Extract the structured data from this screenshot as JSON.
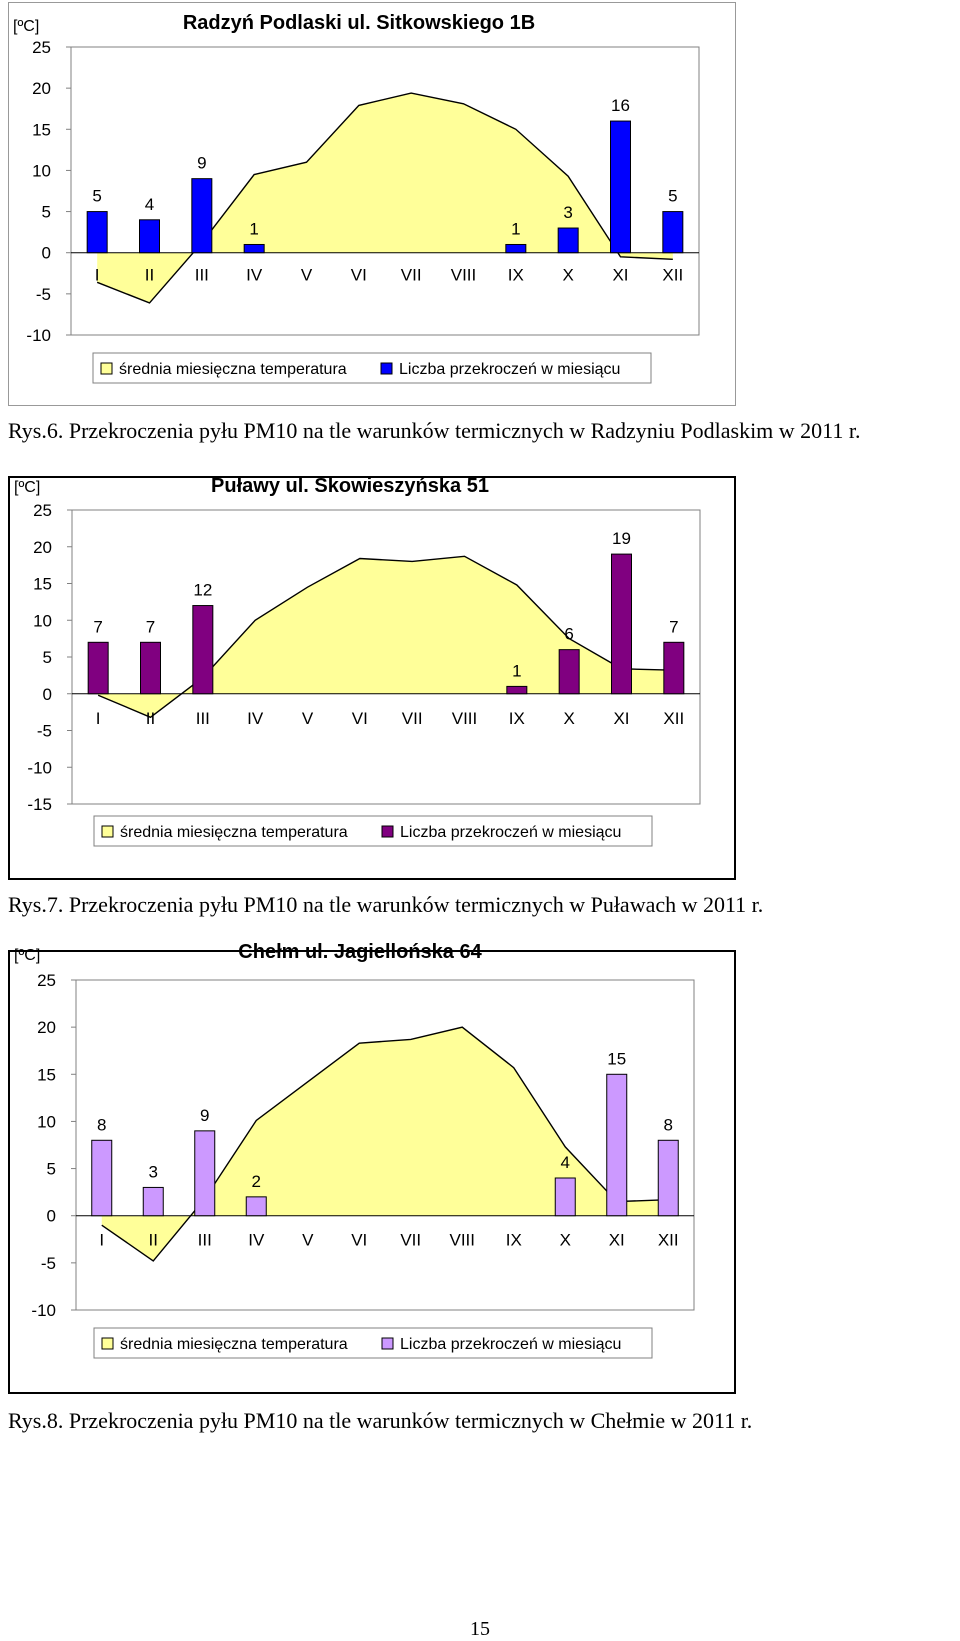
{
  "colors": {
    "temperature_fill": "#ffff99",
    "temperature_stroke": "#000000",
    "plot_border": "#808080"
  },
  "chart_data": [
    {
      "type": "bar",
      "title": "Radzyń Podlaski ul. Sitkowskiego 1B",
      "ylabel": "[ºC]",
      "ylim": [
        -10,
        25
      ],
      "yticks": [
        25,
        20,
        15,
        10,
        5,
        0,
        -5,
        -10
      ],
      "categories": [
        "I",
        "II",
        "III",
        "IV",
        "V",
        "VI",
        "VII",
        "VIII",
        "IX",
        "X",
        "XI",
        "XII"
      ],
      "grid": false,
      "legend_position": "bottom",
      "bar_color": "#0000ff",
      "series": [
        {
          "name": "średnia miesięczna temperatura",
          "type": "area",
          "values": [
            -3.6,
            -6.1,
            1.2,
            9.5,
            11,
            17.9,
            19.4,
            18.1,
            15,
            9.3,
            -0.5,
            -0.8
          ]
        },
        {
          "name": "Liczba przekroczeń w miesiącu",
          "type": "bar",
          "values": [
            5,
            4,
            9,
            1,
            null,
            null,
            null,
            null,
            1,
            3,
            16,
            5
          ],
          "labels": [
            "5",
            "4",
            "9",
            "1",
            "",
            "",
            "",
            "",
            "1",
            "3",
            "16",
            "5"
          ]
        }
      ]
    },
    {
      "type": "bar",
      "title": "Puławy ul. Skowieszyńska 51",
      "ylabel": "[ºC]",
      "ylim": [
        -15,
        25
      ],
      "yticks": [
        25,
        20,
        15,
        10,
        5,
        0,
        -5,
        -10,
        -15
      ],
      "categories": [
        "I",
        "II",
        "III",
        "IV",
        "V",
        "VI",
        "VII",
        "VIII",
        "IX",
        "X",
        "XI",
        "XII"
      ],
      "grid": false,
      "legend_position": "bottom",
      "bar_color": "#800080",
      "series": [
        {
          "name": "średnia miesięczna temperatura",
          "type": "area",
          "values": [
            -0.2,
            -3.2,
            2.2,
            10,
            14.5,
            18.4,
            18,
            18.7,
            14.8,
            7.5,
            3.4,
            3.2
          ]
        },
        {
          "name": "Liczba przekroczeń w miesiącu",
          "type": "bar",
          "values": [
            7,
            7,
            12,
            null,
            null,
            null,
            null,
            null,
            1,
            6,
            19,
            7
          ],
          "labels": [
            "7",
            "7",
            "12",
            "",
            "",
            "",
            "",
            "",
            "1",
            "6",
            "19",
            "7"
          ]
        }
      ]
    },
    {
      "type": "bar",
      "title": "Chełm ul. Jagiellońska 64",
      "ylabel": "[ºC]",
      "ylim": [
        -10,
        25
      ],
      "yticks": [
        25,
        20,
        15,
        10,
        5,
        0,
        -5,
        -10
      ],
      "categories": [
        "I",
        "II",
        "III",
        "IV",
        "V",
        "VI",
        "VII",
        "VIII",
        "IX",
        "X",
        "XI",
        "XII"
      ],
      "grid": false,
      "legend_position": "bottom",
      "bar_color": "#cc99ff",
      "series": [
        {
          "name": "średnia miesięczna temperatura",
          "type": "area",
          "values": [
            -1,
            -4.8,
            1.8,
            10.1,
            14.2,
            18.3,
            18.7,
            20,
            15.7,
            7.3,
            1.5,
            1.7
          ]
        },
        {
          "name": "Liczba przekroczeń w miesiącu",
          "type": "bar",
          "values": [
            8,
            3,
            9,
            2,
            null,
            null,
            null,
            null,
            null,
            4,
            15,
            8
          ],
          "labels": [
            "8",
            "3",
            "9",
            "2",
            "",
            "",
            "",
            "",
            "",
            "4",
            "15",
            "8"
          ]
        }
      ]
    }
  ],
  "captions": [
    "Rys.6. Przekroczenia pyłu PM10 na tle warunków termicznych w Radzyniu Podlaskim w 2011 r.",
    "Rys.7. Przekroczenia pyłu PM10 na tle warunków termicznych w Puławach w 2011 r.",
    "Rys.8. Przekroczenia pyłu PM10 na tle warunków termicznych w Chełmie w 2011 r."
  ],
  "page_number": "15"
}
